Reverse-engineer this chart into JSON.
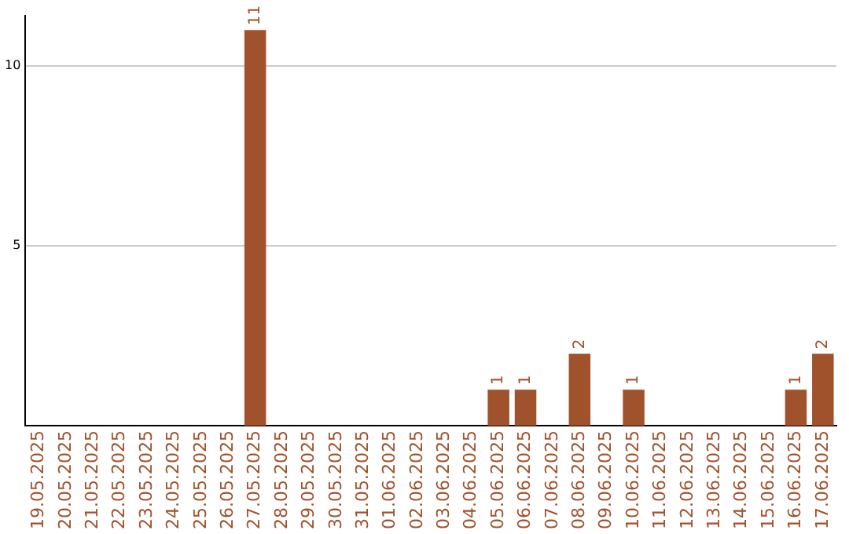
{
  "chart_data": {
    "type": "bar",
    "categories": [
      "19.05.2025",
      "20.05.2025",
      "21.05.2025",
      "22.05.2025",
      "23.05.2025",
      "24.05.2025",
      "25.05.2025",
      "26.05.2025",
      "27.05.2025",
      "28.05.2025",
      "29.05.2025",
      "30.05.2025",
      "31.05.2025",
      "01.06.2025",
      "02.06.2025",
      "03.06.2025",
      "04.06.2025",
      "05.06.2025",
      "06.06.2025",
      "07.06.2025",
      "08.06.2025",
      "09.06.2025",
      "10.06.2025",
      "11.06.2025",
      "12.06.2025",
      "13.06.2025",
      "14.06.2025",
      "15.06.2025",
      "16.06.2025",
      "17.06.2025"
    ],
    "values": [
      0,
      0,
      0,
      0,
      0,
      0,
      0,
      0,
      11,
      0,
      0,
      0,
      0,
      0,
      0,
      0,
      0,
      1,
      1,
      0,
      2,
      0,
      1,
      0,
      0,
      0,
      0,
      0,
      1,
      2
    ],
    "value_labels": [
      null,
      null,
      null,
      null,
      null,
      null,
      null,
      null,
      "11",
      null,
      null,
      null,
      null,
      null,
      null,
      null,
      null,
      "1",
      "1",
      null,
      "2",
      null,
      "1",
      null,
      null,
      null,
      null,
      null,
      "1",
      "2"
    ],
    "color": "#a0522d",
    "ylim": [
      0,
      11.4
    ],
    "yticks": [
      5,
      10
    ],
    "grid": "y",
    "legend": false
  }
}
